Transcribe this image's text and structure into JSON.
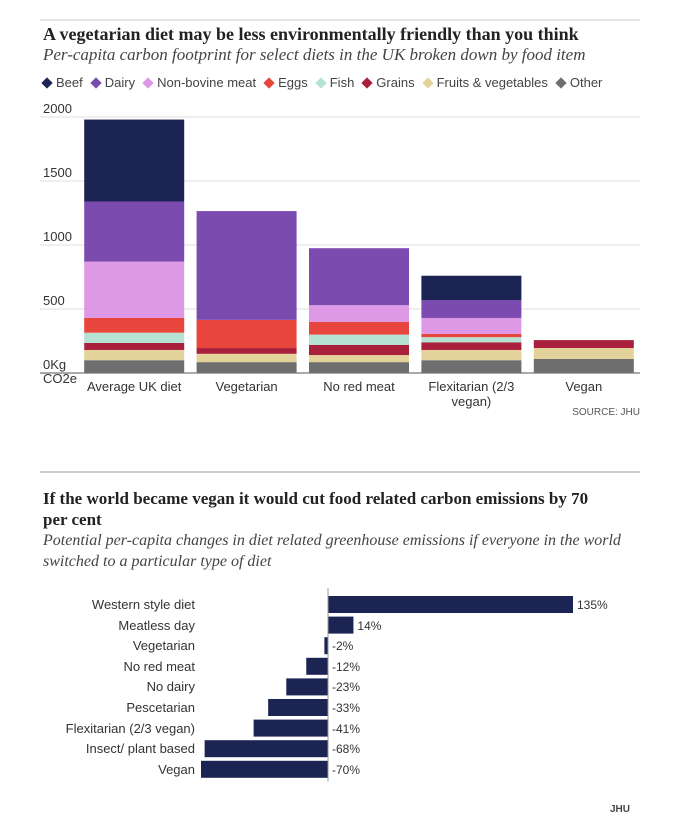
{
  "chart_data": [
    {
      "type": "stacked-bar",
      "title": "A vegetarian diet may be less environmentally friendly than you think",
      "subtitle": "Per-capita carbon footprint for select diets in the UK broken down by food item",
      "categories": [
        "Average UK diet",
        "Vegetarian",
        "No red meat",
        "Flexitarian (2/3 vegan)",
        "Vegan"
      ],
      "series": [
        {
          "name": "Other",
          "color": "#6e6e6e",
          "values": [
            100,
            85,
            85,
            100,
            110
          ]
        },
        {
          "name": "Fruits & vegetables",
          "color": "#e3d39b",
          "values": [
            80,
            65,
            55,
            80,
            85
          ]
        },
        {
          "name": "Grains",
          "color": "#a8203b",
          "values": [
            55,
            45,
            80,
            60,
            62
          ]
        },
        {
          "name": "Fish",
          "color": "#b6e2d3",
          "values": [
            80,
            0,
            80,
            40,
            0
          ]
        },
        {
          "name": "Eggs",
          "color": "#e8453c",
          "values": [
            115,
            220,
            100,
            25,
            0
          ]
        },
        {
          "name": "Non-bovine meat",
          "color": "#dd99e6",
          "values": [
            440,
            0,
            130,
            125,
            0
          ]
        },
        {
          "name": "Dairy",
          "color": "#7b4bb0",
          "values": [
            470,
            850,
            445,
            140,
            0
          ]
        },
        {
          "name": "Beef",
          "color": "#1b2452",
          "values": [
            640,
            0,
            0,
            190,
            0
          ]
        }
      ],
      "legend_order": "reverse",
      "ylim": [
        0,
        2000
      ],
      "yticks": [
        {
          "value": 0,
          "label": "0Kg CO2e"
        },
        500,
        1000,
        1500,
        2000
      ],
      "grid": true,
      "source": "SOURCE: JHU"
    },
    {
      "type": "hbar",
      "title": "If the world became vegan it would cut food related carbon emissions by 70 per cent",
      "subtitle": "Potential per-capita changes in diet related greenhouse emissions if everyone in the world switched to a particular type of diet",
      "categories": [
        "Western style diet",
        "Meatless day",
        "Vegetarian",
        "No red meat",
        "No dairy",
        "Pescetarian",
        "Flexitarian (2/3 vegan)",
        "Insect/ plant based",
        "Vegan"
      ],
      "values": [
        135,
        14,
        -2,
        -12,
        -23,
        -33,
        -41,
        -68,
        -70
      ],
      "value_labels": [
        "135%",
        "14%",
        "-2%",
        "-12%",
        "-23%",
        "-33%",
        "-41%",
        "-68%",
        "-70%"
      ],
      "color": "#1b2452",
      "xlim": [
        -70,
        135
      ],
      "source": "JHU"
    }
  ]
}
